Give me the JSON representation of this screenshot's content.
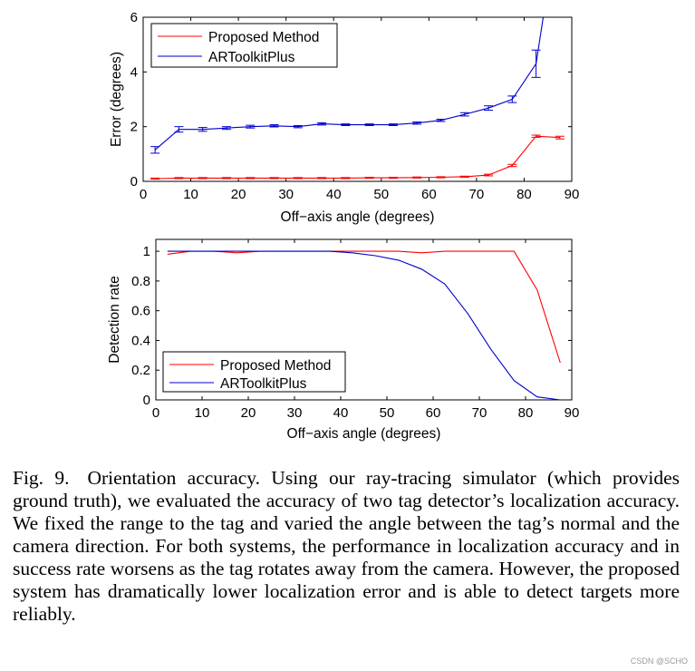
{
  "chart_data": [
    {
      "type": "line",
      "xlabel": "Off−axis angle (degrees)",
      "ylabel": "Error (degrees)",
      "xlim": [
        0,
        90
      ],
      "ylim": [
        0,
        6
      ],
      "xticks": [
        0,
        10,
        20,
        30,
        40,
        50,
        60,
        70,
        80,
        90
      ],
      "yticks": [
        0,
        2,
        4,
        6
      ],
      "grid": false,
      "legend": "top-left",
      "series": [
        {
          "name": "Proposed Method",
          "color": "#ff0000",
          "x": [
            2.5,
            7.5,
            12.5,
            17.5,
            22.5,
            27.5,
            32.5,
            37.5,
            42.5,
            47.5,
            52.5,
            57.5,
            62.5,
            67.5,
            72.5,
            77.5,
            82.5,
            87.5
          ],
          "y": [
            0.1,
            0.12,
            0.12,
            0.12,
            0.12,
            0.12,
            0.12,
            0.12,
            0.12,
            0.13,
            0.13,
            0.14,
            0.15,
            0.17,
            0.23,
            0.58,
            1.65,
            1.6
          ],
          "err": [
            0.02,
            0.02,
            0.02,
            0.02,
            0.02,
            0.02,
            0.02,
            0.02,
            0.02,
            0.02,
            0.02,
            0.02,
            0.02,
            0.02,
            0.03,
            0.04,
            0.04,
            0.05
          ]
        },
        {
          "name": "ARToolkitPlus",
          "color": "#0000cc",
          "x": [
            2.5,
            7.5,
            12.5,
            17.5,
            22.5,
            27.5,
            32.5,
            37.5,
            42.5,
            47.5,
            52.5,
            57.5,
            62.5,
            67.5,
            72.5,
            77.5,
            82.5,
            84
          ],
          "y": [
            1.15,
            1.9,
            1.9,
            1.95,
            2.0,
            2.03,
            2.0,
            2.1,
            2.07,
            2.07,
            2.07,
            2.13,
            2.23,
            2.45,
            2.68,
            3.0,
            4.3,
            6.0
          ],
          "err": [
            0.12,
            0.1,
            0.07,
            0.05,
            0.05,
            0.04,
            0.04,
            0.04,
            0.03,
            0.03,
            0.03,
            0.04,
            0.04,
            0.06,
            0.08,
            0.12,
            0.5,
            0
          ]
        }
      ]
    },
    {
      "type": "line",
      "xlabel": "Off−axis angle (degrees)",
      "ylabel": "Detection rate",
      "xlim": [
        0,
        90
      ],
      "ylim": [
        0,
        1.08
      ],
      "xticks": [
        0,
        10,
        20,
        30,
        40,
        50,
        60,
        70,
        80,
        90
      ],
      "yticks": [
        0,
        0.2,
        0.4,
        0.6,
        0.8,
        1
      ],
      "grid": false,
      "legend": "bottom-left",
      "series": [
        {
          "name": "Proposed Method",
          "color": "#ff0000",
          "x": [
            2.5,
            7.5,
            12.5,
            17.5,
            22.5,
            27.5,
            32.5,
            37.5,
            42.5,
            47.5,
            52.5,
            57.5,
            62.5,
            67.5,
            72.5,
            77.5,
            82.5,
            87.5
          ],
          "y": [
            0.98,
            1.0,
            1.0,
            0.99,
            1.0,
            1.0,
            1.0,
            1.0,
            1.0,
            1.0,
            1.0,
            0.99,
            1.0,
            1.0,
            1.0,
            1.0,
            0.74,
            0.25
          ]
        },
        {
          "name": "ARToolkitPlus",
          "color": "#0000cc",
          "x": [
            2.5,
            7.5,
            12.5,
            17.5,
            22.5,
            27.5,
            32.5,
            37.5,
            42.5,
            47.5,
            52.5,
            57.5,
            62.5,
            67.5,
            72.5,
            77.5,
            82.5,
            87.5
          ],
          "y": [
            1.0,
            1.0,
            1.0,
            1.0,
            1.0,
            1.0,
            1.0,
            1.0,
            0.99,
            0.97,
            0.94,
            0.88,
            0.78,
            0.58,
            0.34,
            0.13,
            0.02,
            0.0
          ]
        }
      ]
    }
  ],
  "caption": {
    "label": "Fig. 9.",
    "text": "Orientation accuracy. Using our ray-tracing simulator (which provides ground truth), we evaluated the accuracy of two tag detector’s localization accuracy. We fixed the range to the tag and varied the angle between the tag’s normal and the camera direction. For both systems, the performance in localization accuracy and in success rate worsens as the tag rotates away from the camera. However, the proposed system has dramatically lower localization error and is able to detect targets more reliably."
  },
  "watermark": "CSDN @SCHO"
}
